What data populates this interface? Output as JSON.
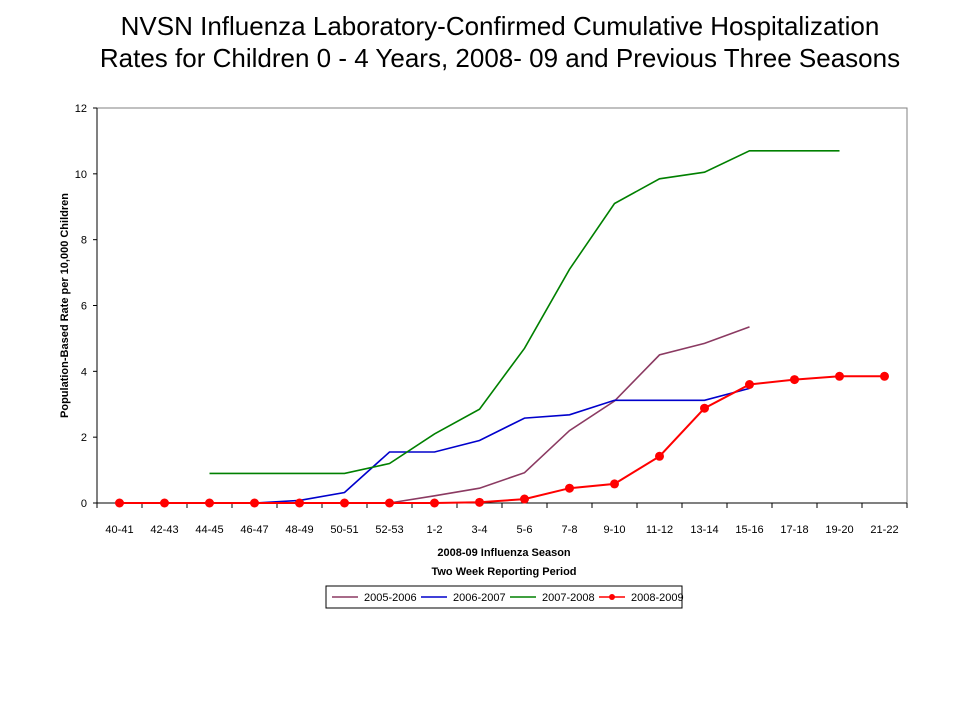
{
  "chart_data": {
    "type": "line",
    "title_lines": [
      "NVSN Influenza Laboratory-Confirmed Cumulative Hospitalization",
      "Rates for Children 0 - 4 Years, 2008- 09 and Previous Three Seasons"
    ],
    "xlabel_lines": [
      "2008-09 Influenza Season",
      "Two Week Reporting Period"
    ],
    "ylabel": "Population-Based Rate per 10,000 Children",
    "ylim": [
      0,
      12
    ],
    "yticks": [
      "0",
      "2",
      "4",
      "6",
      "8",
      "10",
      "12"
    ],
    "categories": [
      "40-41",
      "42-43",
      "44-45",
      "46-47",
      "48-49",
      "50-51",
      "52-53",
      "1-2",
      "3-4",
      "5-6",
      "7-8",
      "9-10",
      "11-12",
      "13-14",
      "15-16",
      "17-18",
      "19-20",
      "21-22"
    ],
    "grid": false,
    "legend_position": "bottom",
    "series": [
      {
        "name": "2005-2006",
        "color": "#8b3a62",
        "markers": false,
        "values": [
          null,
          null,
          null,
          null,
          null,
          null,
          0,
          0.22,
          0.45,
          0.92,
          2.2,
          3.1,
          4.5,
          4.85,
          5.35,
          null,
          null,
          null
        ]
      },
      {
        "name": "2006-2007",
        "color": "#0000cc",
        "markers": false,
        "values": [
          null,
          null,
          null,
          0,
          0.08,
          0.32,
          1.55,
          1.55,
          1.9,
          2.58,
          2.68,
          3.12,
          3.12,
          3.12,
          3.48,
          null,
          null,
          null
        ]
      },
      {
        "name": "2007-2008",
        "color": "#008000",
        "markers": false,
        "values": [
          null,
          null,
          0.9,
          0.9,
          0.9,
          0.9,
          1.2,
          2.1,
          2.85,
          4.7,
          7.1,
          9.1,
          9.85,
          10.05,
          10.7,
          10.7,
          10.7,
          null
        ]
      },
      {
        "name": "2008-2009",
        "color": "#ff0000",
        "markers": true,
        "values": [
          0,
          0,
          0,
          0,
          0,
          0,
          0,
          0,
          0.02,
          0.12,
          0.45,
          0.58,
          1.42,
          2.88,
          3.6,
          3.75,
          3.85,
          3.85
        ]
      }
    ]
  }
}
